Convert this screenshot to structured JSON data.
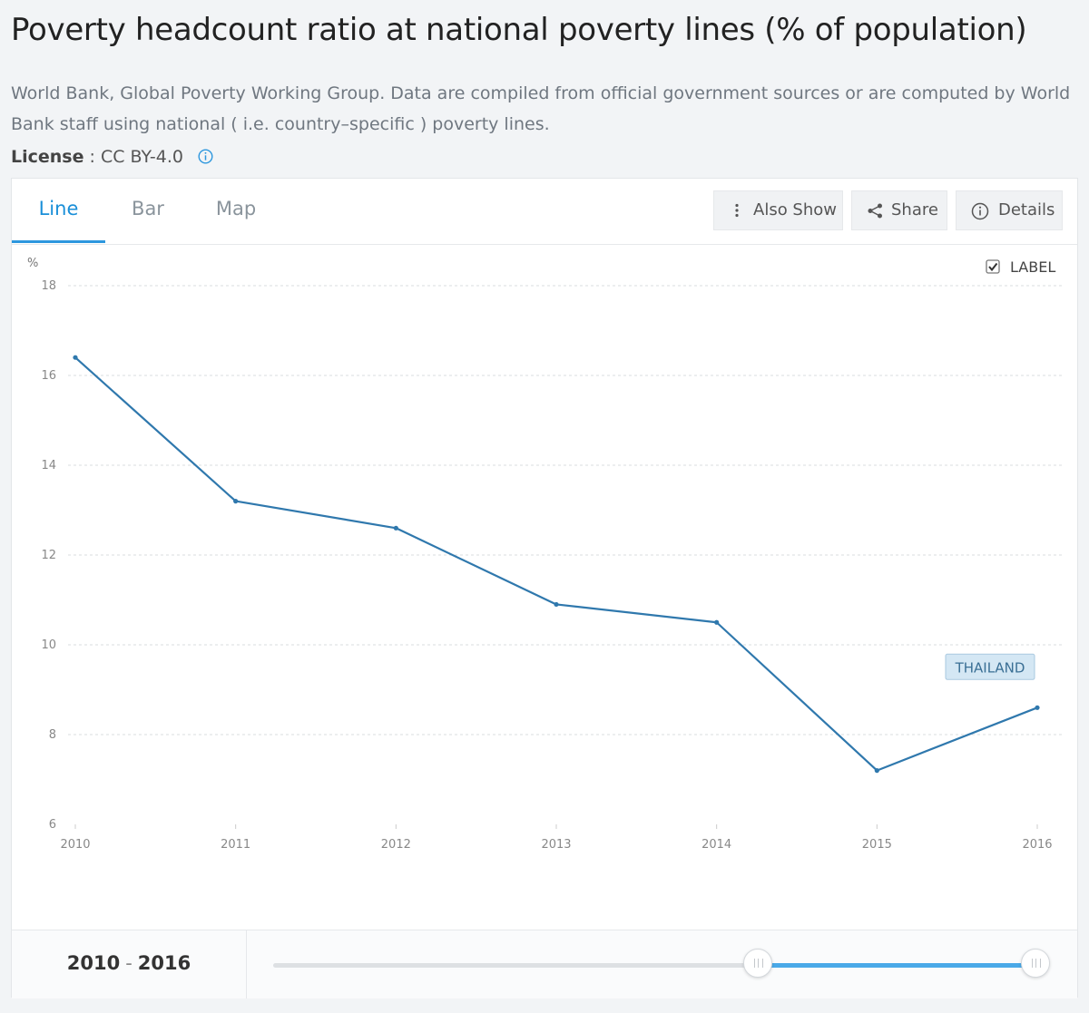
{
  "page": {
    "title": "Poverty headcount ratio at national poverty lines (% of population)",
    "source": "World Bank, Global Poverty Working Group. Data are compiled from official government sources or are computed by World Bank staff using national ( i.e. country–specific ) poverty lines.",
    "license_label": "License",
    "license_value": " : CC BY-4.0"
  },
  "tabs": [
    {
      "label": "Line",
      "active": true
    },
    {
      "label": "Bar",
      "active": false
    },
    {
      "label": "Map",
      "active": false
    }
  ],
  "toolbar": {
    "also_show": "Also Show",
    "share": "Share",
    "details": "Details"
  },
  "label_toggle": {
    "text": "LABEL",
    "checked": true
  },
  "range": {
    "start": "2010",
    "sep": "-",
    "end": "2016"
  },
  "colors": {
    "line": "#2f78ad",
    "accent": "#2d97de",
    "series_label_bg": "#d4e7f4"
  },
  "chart_data": {
    "type": "line",
    "title": "Poverty headcount ratio at national poverty lines (% of population)",
    "ylabel": "%",
    "xlabel": "",
    "ylim": [
      6,
      18
    ],
    "yticks": [
      6,
      8,
      10,
      12,
      14,
      16,
      18
    ],
    "grid": true,
    "categories": [
      "2010",
      "2011",
      "2012",
      "2013",
      "2014",
      "2015",
      "2016"
    ],
    "series": [
      {
        "name": "THAILAND",
        "values": [
          16.4,
          13.2,
          12.6,
          10.9,
          10.5,
          7.2,
          8.6
        ]
      }
    ]
  }
}
